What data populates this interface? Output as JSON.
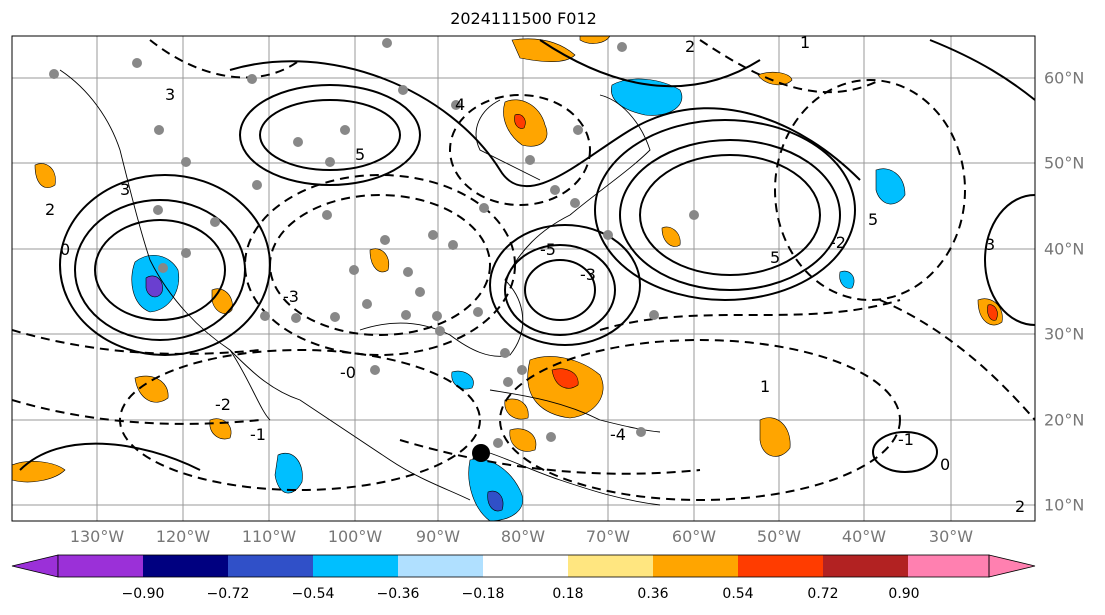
{
  "title": "2024111500 F012",
  "lon_labels": [
    "130°W",
    "120°W",
    "110°W",
    "100°W",
    "90°W",
    "80°W",
    "70°W",
    "60°W",
    "50°W",
    "40°W",
    "30°W"
  ],
  "lat_labels": [
    "60°N",
    "50°N",
    "40°N",
    "30°N",
    "20°N",
    "10°N"
  ],
  "colorbar": {
    "ticks": [
      "−0.90",
      "−0.72",
      "−0.54",
      "−0.36",
      "−0.18",
      "0.18",
      "0.36",
      "0.54",
      "0.72",
      "0.90"
    ],
    "colors": [
      "#9b30d8",
      "#000080",
      "#3050c8",
      "#00bfff",
      "#b0e0ff",
      "#ffffff",
      "#ffe680",
      "#ffa500",
      "#ff3c00",
      "#b22222",
      "#ff80b0"
    ]
  },
  "contour_labels": [
    "3",
    "2",
    "0",
    "-0",
    "-2",
    "-1",
    "4",
    "5",
    "-3",
    "1",
    "-1",
    "3",
    "5",
    "2",
    "0",
    "-5",
    "-4",
    "-3",
    "-2",
    "5",
    "3",
    "2",
    "1"
  ]
}
